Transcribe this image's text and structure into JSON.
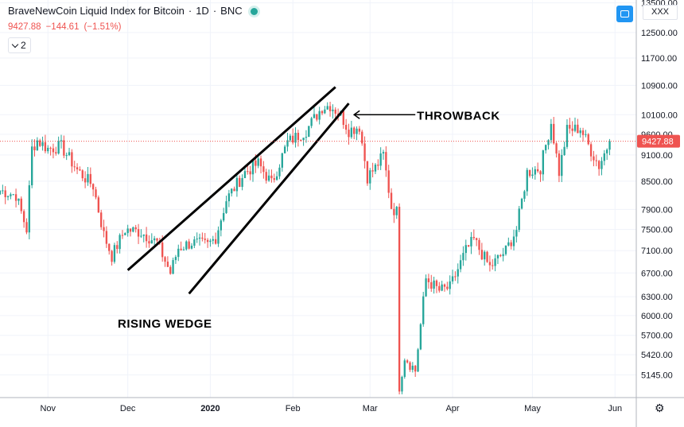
{
  "header": {
    "symbol_name": "BraveNewCoin Liquid Index for Bitcoin",
    "interval": "1D",
    "exchange": "BNC",
    "last_price": "9427.88",
    "change": "−144.61",
    "change_percent": "(−1.51%)",
    "studies_count": "2",
    "symbol_tag": "XXX"
  },
  "colors": {
    "up": "#26a69a",
    "down": "#ef5350",
    "grid": "#f0f3fa",
    "price_line": "#ef5350",
    "text": "#131722",
    "accent": "#2196f3"
  },
  "chart_data": {
    "type": "candlestick",
    "title": "BraveNewCoin Liquid Index for Bitcoin",
    "interval": "1D",
    "y_scale": "log",
    "y_ticks": [
      5145,
      5420,
      5700,
      6000,
      6300,
      6700,
      7100,
      7500,
      7900,
      8500,
      9100,
      9600,
      10100,
      10900,
      11700,
      12500,
      13500
    ],
    "y_tick_labels": [
      "5145.00",
      "5420.00",
      "5700.00",
      "6000.00",
      "6300.00",
      "6700.00",
      "7100.00",
      "7500.00",
      "7900.00",
      "8500.00",
      "9100.00",
      "9600.00",
      "10100.00",
      "10900.00",
      "11700.00",
      "12500.00",
      "13500.00"
    ],
    "x_tick_labels": [
      "Nov",
      "Dec",
      "2020",
      "Feb",
      "Mar",
      "Apr",
      "May",
      "Jun"
    ],
    "x_ticks": [
      "2019-11-01",
      "2019-12-01",
      "2020-01-01",
      "2020-02-01",
      "2020-03-01",
      "2020-04-01",
      "2020-05-01",
      "2020-06-01"
    ],
    "last_price": 9427.88,
    "last_price_label": "9427.88",
    "annotations": [
      "RISING WEDGE",
      "THROWBACK"
    ],
    "price_path": [
      [
        "2019-10-14",
        8300
      ],
      [
        "2019-10-20",
        8200
      ],
      [
        "2019-10-24",
        7500
      ],
      [
        "2019-10-26",
        9250
      ],
      [
        "2019-10-28",
        9450
      ],
      [
        "2019-11-01",
        9250
      ],
      [
        "2019-11-06",
        9300
      ],
      [
        "2019-11-12",
        8750
      ],
      [
        "2019-11-18",
        8400
      ],
      [
        "2019-11-22",
        7400
      ],
      [
        "2019-11-25",
        7000
      ],
      [
        "2019-11-30",
        7500
      ],
      [
        "2019-12-06",
        7450
      ],
      [
        "2019-12-12",
        7250
      ],
      [
        "2019-12-17",
        6700
      ],
      [
        "2019-12-20",
        7150
      ],
      [
        "2019-12-25",
        7250
      ],
      [
        "2019-12-31",
        7200
      ],
      [
        "2020-01-03",
        7350
      ],
      [
        "2020-01-07",
        8100
      ],
      [
        "2020-01-14",
        8700
      ],
      [
        "2020-01-19",
        8900
      ],
      [
        "2020-01-24",
        8450
      ],
      [
        "2020-01-30",
        9400
      ],
      [
        "2020-02-06",
        9700
      ],
      [
        "2020-02-12",
        10300
      ],
      [
        "2020-02-15",
        10350
      ],
      [
        "2020-02-19",
        10100
      ],
      [
        "2020-02-22",
        9700
      ],
      [
        "2020-02-26",
        9800
      ],
      [
        "2020-02-29",
        8600
      ],
      [
        "2020-03-03",
        8800
      ],
      [
        "2020-03-06",
        9100
      ],
      [
        "2020-03-09",
        7950
      ],
      [
        "2020-03-11",
        7850
      ],
      [
        "2020-03-12",
        5000
      ],
      [
        "2020-03-14",
        5400
      ],
      [
        "2020-03-18",
        5200
      ],
      [
        "2020-03-22",
        6600
      ],
      [
        "2020-03-27",
        6400
      ],
      [
        "2020-03-31",
        6450
      ],
      [
        "2020-04-06",
        7100
      ],
      [
        "2020-04-09",
        7300
      ],
      [
        "2020-04-15",
        6800
      ],
      [
        "2020-04-21",
        7100
      ],
      [
        "2020-04-25",
        7500
      ],
      [
        "2020-04-29",
        8700
      ],
      [
        "2020-05-04",
        8800
      ],
      [
        "2020-05-08",
        9900
      ],
      [
        "2020-05-11",
        8700
      ],
      [
        "2020-05-14",
        9700
      ],
      [
        "2020-05-19",
        9750
      ],
      [
        "2020-05-23",
        9200
      ],
      [
        "2020-05-26",
        8850
      ],
      [
        "2020-05-30",
        9427.88
      ]
    ],
    "trendlines": [
      {
        "name": "wedge-upper",
        "from": [
          "2019-12-01",
          6750
        ],
        "to": [
          "2020-02-17",
          10850
        ]
      },
      {
        "name": "wedge-lower",
        "from": [
          "2019-12-24",
          6350
        ],
        "to": [
          "2020-02-22",
          10400
        ]
      },
      {
        "name": "throwback-arrow",
        "from": [
          "2020-03-18",
          10100
        ],
        "to": [
          "2020-02-24",
          10100
        ]
      }
    ]
  }
}
